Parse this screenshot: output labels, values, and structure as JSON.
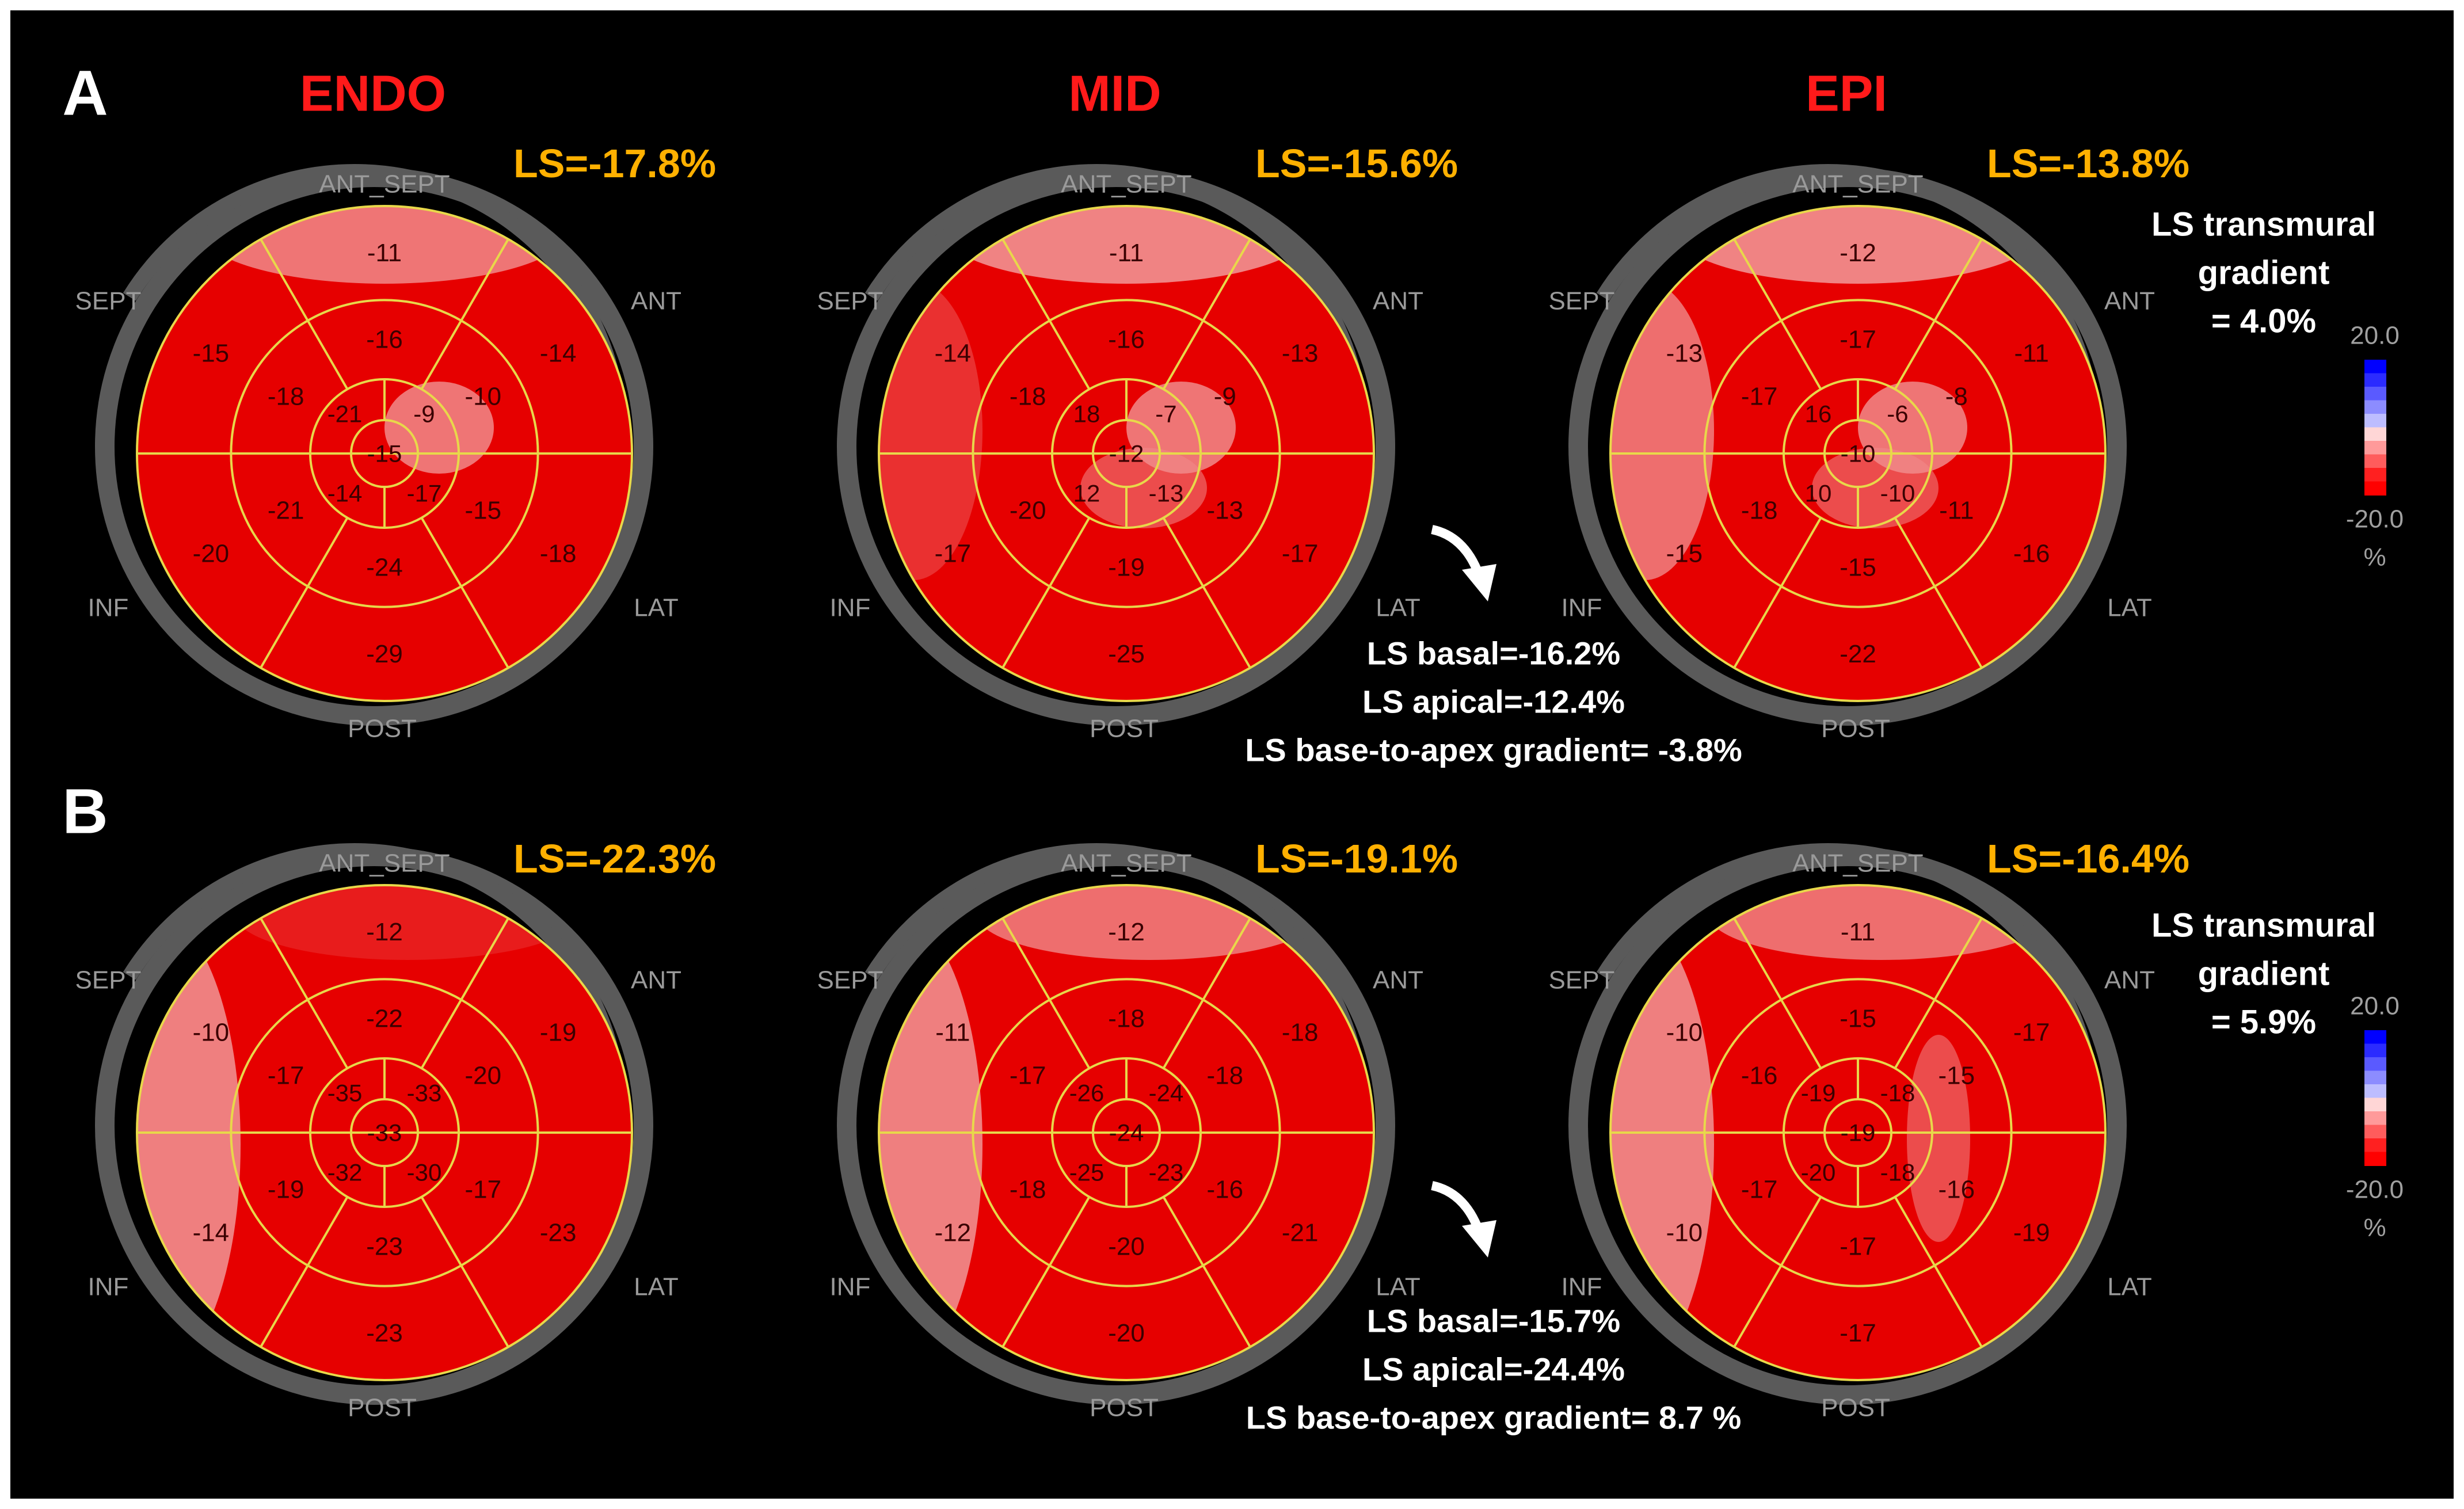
{
  "rows": [
    {
      "letter": "A",
      "panels": [
        {
          "layer": "ENDO",
          "ls": "LS=-17.8%",
          "basal": [
            "-11",
            "-14",
            "-18",
            "-29",
            "-20",
            "-15"
          ],
          "mid": [
            "-16",
            "-10",
            "-15",
            "-24",
            "-21",
            "-18"
          ],
          "apical": [
            "-9",
            "-17",
            "-14",
            "-21"
          ],
          "apex": "-15"
        },
        {
          "layer": "MID",
          "ls": "LS=-15.6%",
          "basal": [
            "-11",
            "-13",
            "-17",
            "-25",
            "-17",
            "-14"
          ],
          "mid": [
            "-16",
            "-9",
            "-13",
            "-19",
            "-20",
            "-18"
          ],
          "apical": [
            "-7",
            "-13",
            "12",
            "18"
          ],
          "apex": "-12"
        },
        {
          "layer": "EPI",
          "ls": "LS=-13.8%",
          "basal": [
            "-12",
            "-11",
            "-16",
            "-22",
            "-15",
            "-13"
          ],
          "mid": [
            "-17",
            "-8",
            "-11",
            "-15",
            "-18",
            "-17"
          ],
          "apical": [
            "-6",
            "-10",
            "10",
            "16"
          ],
          "apex": "-10"
        }
      ],
      "gradient": {
        "line1": "LS transmural",
        "line2": "gradient",
        "line3": "= 4.0%"
      },
      "summary": [
        "LS basal=-16.2%",
        "LS apical=-12.4%",
        "LS base-to-apex gradient= -3.8%"
      ]
    },
    {
      "letter": "B",
      "panels": [
        {
          "layer": "",
          "ls": "LS=-22.3%",
          "basal": [
            "-12",
            "-19",
            "-23",
            "-23",
            "-14",
            "-10"
          ],
          "mid": [
            "-22",
            "-20",
            "-17",
            "-23",
            "-19",
            "-17"
          ],
          "apical": [
            "-33",
            "-30",
            "-32",
            "-35"
          ],
          "apex": "-33"
        },
        {
          "layer": "",
          "ls": "LS=-19.1%",
          "basal": [
            "-12",
            "-18",
            "-21",
            "-20",
            "-12",
            "-11"
          ],
          "mid": [
            "-18",
            "-18",
            "-16",
            "-20",
            "-18",
            "-17"
          ],
          "apical": [
            "-24",
            "-23",
            "-25",
            "-26"
          ],
          "apex": "-24"
        },
        {
          "layer": "",
          "ls": "LS=-16.4%",
          "basal": [
            "-11",
            "-17",
            "-19",
            "-17",
            "-10",
            "-10"
          ],
          "mid": [
            "-15",
            "-15",
            "-16",
            "-17",
            "-17",
            "-16"
          ],
          "apical": [
            "-18",
            "-18",
            "-20",
            "-19"
          ],
          "apex": "-19"
        }
      ],
      "gradient": {
        "line1": "LS transmural",
        "line2": "gradient",
        "line3": "= 5.9%"
      },
      "summary": [
        "LS basal=-15.7%",
        "LS apical=-24.4%",
        "LS base-to-apex gradient= 8.7 %"
      ]
    }
  ],
  "wall_labels": {
    "ant_sept": "ANT_SEPT",
    "ant": "ANT",
    "lat": "LAT",
    "post": "POST",
    "inf": "INF",
    "sept": "SEPT"
  },
  "color_scale": {
    "max": "20.0",
    "min": "-20.0",
    "unit": "%",
    "colors": [
      "#0000ff",
      "#2b2bff",
      "#5a5aff",
      "#8c8cff",
      "#bdbdff",
      "#ffd6d6",
      "#ff9a9a",
      "#ff5c5c",
      "#ff2020",
      "#ff0000"
    ]
  },
  "colors": {
    "background": "#000000",
    "map_red": "#e60000",
    "pale_red": "#f08a8a",
    "grid": "#e8d84a",
    "layer_label": "#ff1a1a",
    "ls_label": "#ffb000",
    "text": "#ffffff",
    "ring": "#5a5a5a"
  }
}
